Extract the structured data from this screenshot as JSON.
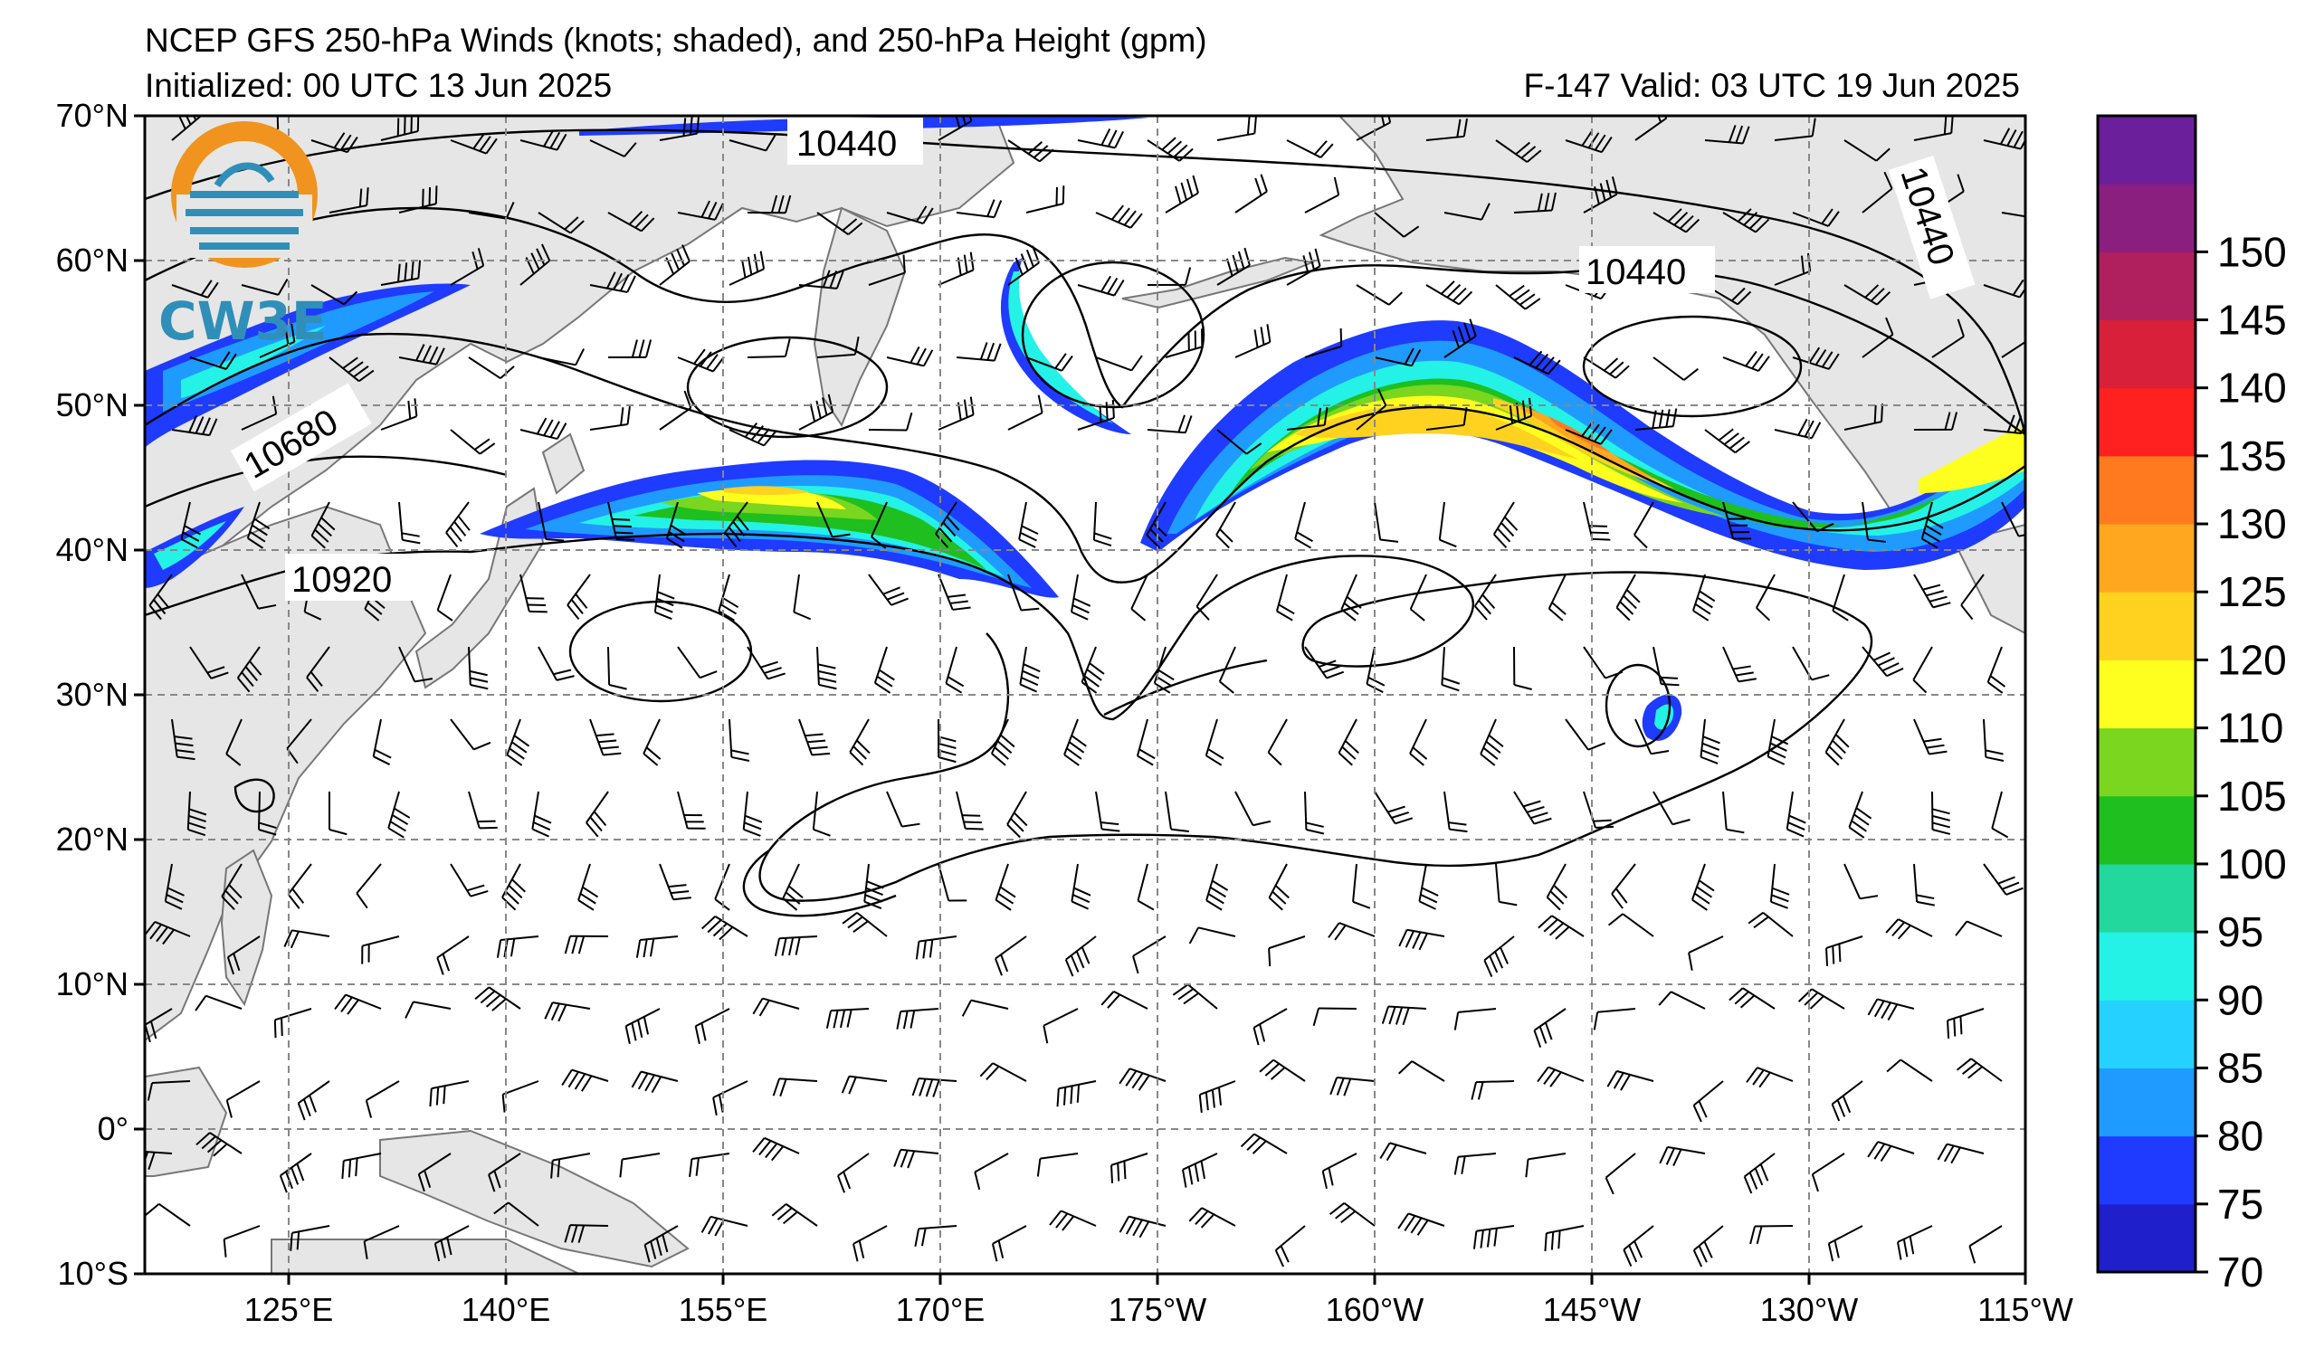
{
  "header": {
    "title": "NCEP GFS 250-hPa Winds (knots; shaded), and 250-hPa Height (gpm)",
    "init": "Initialized: 00 UTC 13 Jun 2025",
    "valid": "F-147  Valid: 03 UTC 19 Jun 2025"
  },
  "map": {
    "lat_labels": [
      "70°N",
      "60°N",
      "50°N",
      "40°N",
      "30°N",
      "20°N",
      "10°N",
      "0°",
      "10°S"
    ],
    "lon_labels": [
      "125°E",
      "140°E",
      "155°E",
      "170°E",
      "175°W",
      "160°W",
      "145°W",
      "130°W",
      "115°W"
    ],
    "extent": {
      "lon_west": "115°E",
      "lon_east": "115°W",
      "lat_south": "10°S",
      "lat_north": "70°N"
    },
    "land_color": "#e6e6e6",
    "ocean_color": "#ffffff",
    "contour_labels": [
      "10440",
      "10440",
      "10440",
      "10680",
      "10920"
    ]
  },
  "colorbar": {
    "labels": [
      "70",
      "75",
      "80",
      "85",
      "90",
      "95",
      "100",
      "105",
      "110",
      "120",
      "125",
      "130",
      "135",
      "140",
      "145",
      "150"
    ],
    "colors": [
      "#1f1fcc",
      "#1f3bff",
      "#1f9bff",
      "#25d2ff",
      "#24f2e6",
      "#22d89c",
      "#1fbf1f",
      "#7ad61f",
      "#ffff1f",
      "#ffd21f",
      "#ffa81f",
      "#ff7a1f",
      "#ff2020",
      "#d8203a",
      "#b01f5e",
      "#8a1f80",
      "#6b1f9a"
    ]
  },
  "logo": {
    "text": "CW3E",
    "ring_color": "#f0941f",
    "text_color": "#2f8fb8",
    "icon": "cw3e-logo-icon"
  }
}
